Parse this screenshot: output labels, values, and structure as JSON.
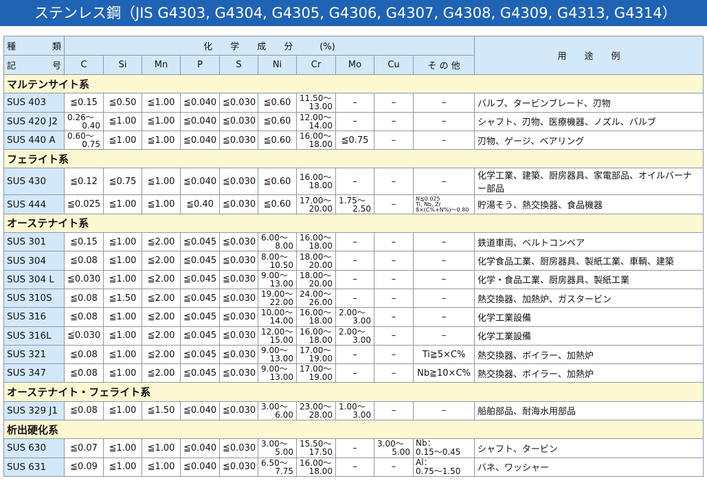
{
  "title": "ステンレス鋼（JIS G4303, G4304, G4305, G4306, G4307, G4308, G4309, G4313, G4314）",
  "header": {
    "kind_a": "種",
    "kind_b": "類",
    "sym_a": "記",
    "sym_b": "号",
    "chem": "化　　学　　成　　分　　　(%)",
    "usage": "用　　途　　例",
    "elements": [
      "C",
      "Si",
      "Mn",
      "P",
      "S",
      "Ni",
      "Cr",
      "Mo",
      "Cu",
      "そ の 他"
    ]
  },
  "groups": [
    {
      "name": "マルテンサイト系",
      "rows": [
        {
          "code": "SUS 403",
          "v": [
            "≦0.15",
            "≦0.50",
            "≦1.00",
            "≦0.040",
            "≦0.030",
            "≦0.60",
            [
              "11.50～",
              "13.00"
            ],
            "–",
            "–",
            "–"
          ],
          "use": "バルブ、タービンブレード、刃物"
        },
        {
          "code": "SUS 420 J2",
          "v": [
            [
              "0.26～",
              "0.40"
            ],
            "≦1.00",
            "≦1.00",
            "≦0.040",
            "≦0.030",
            "≦0.60",
            [
              "12.00～",
              "14.00"
            ],
            "–",
            "–",
            "–"
          ],
          "use": "シャフト、刃物、医療機器、ノズル、バルブ"
        },
        {
          "code": "SUS 440 A",
          "v": [
            [
              "0.60～",
              "0.75"
            ],
            "≦1.00",
            "≦1.00",
            "≦0.040",
            "≦0.030",
            "≦0.60",
            [
              "16.00～",
              "18.00"
            ],
            "≦0.75",
            "–",
            "–"
          ],
          "use": "刃物、ゲージ、ベアリング"
        }
      ]
    },
    {
      "name": "フェライト系",
      "rows": [
        {
          "code": "SUS 430",
          "v": [
            "≦0.12",
            "≦0.75",
            "≦1.00",
            "≦0.040",
            "≦0.030",
            "≦0.60",
            [
              "16.00～",
              "18.00"
            ],
            "–",
            "–",
            "–"
          ],
          "use": "化学工業、建築、厨房器具、家電部品、オイルバーナー部品"
        },
        {
          "code": "SUS 444",
          "v": [
            "≦0.025",
            "≦1.00",
            "≦1.00",
            "≦0.40",
            "≦0.030",
            "≦0.60",
            [
              "17.00～",
              "20.00"
            ],
            [
              "1.75～",
              "2.50"
            ],
            "–",
            {
              "tiny": [
                "N≦0.025",
                "Ti, Nb, Zr",
                "8×(C%+N%)～0.80"
              ]
            }
          ],
          "use": "貯湯そう、熱交換器、食品機器"
        }
      ]
    },
    {
      "name": "オーステナイト系",
      "rows": [
        {
          "code": "SUS 301",
          "v": [
            "≦0.15",
            "≦1.00",
            "≦2.00",
            "≦0.045",
            "≦0.030",
            [
              "6.00～",
              "8.00"
            ],
            [
              "16.00～",
              "18.00"
            ],
            "–",
            "–",
            "–"
          ],
          "use": "鉄道車両、ベルトコンベア"
        },
        {
          "code": "SUS 304",
          "v": [
            "≦0.08",
            "≦1.00",
            "≦2.00",
            "≦0.045",
            "≦0.030",
            [
              "8.00～",
              "10.50"
            ],
            [
              "18.00～",
              "20.00"
            ],
            "–",
            "–",
            "–"
          ],
          "use": "化学食品工業、厨房器具、製紙工業、車輌、建築"
        },
        {
          "code": "SUS 304 L",
          "v": [
            "≦0.030",
            "≦1.00",
            "≦2.00",
            "≦0.045",
            "≦0.030",
            [
              "9.00～",
              "13.00"
            ],
            [
              "18.00～",
              "20.00"
            ],
            "–",
            "–",
            "–"
          ],
          "use": "化学・食品工業、厨房器具、製紙工業"
        },
        {
          "code": "SUS 310S",
          "v": [
            "≦0.08",
            "≦1.50",
            "≦2.00",
            "≦0.045",
            "≦0.030",
            [
              "19.00～",
              "22.00"
            ],
            [
              "24.00～",
              "26.00"
            ],
            "–",
            "–",
            "–"
          ],
          "use": "熱交換器、加熱炉、ガスタービン"
        },
        {
          "code": "SUS 316",
          "v": [
            "≦0.08",
            "≦1.00",
            "≦2.00",
            "≦0.045",
            "≦0.030",
            [
              "10.00～",
              "14.00"
            ],
            [
              "16.00～",
              "18.00"
            ],
            [
              "2.00～",
              "3.00"
            ],
            "–",
            "–"
          ],
          "use": "化学工業設備"
        },
        {
          "code": "SUS 316L",
          "v": [
            "≦0.030",
            "≦1.00",
            "≦2.00",
            "≦0.045",
            "≦0.030",
            [
              "12.00～",
              "15.00"
            ],
            [
              "16.00～",
              "18.00"
            ],
            [
              "2.00～",
              "3.00"
            ],
            "–",
            "–"
          ],
          "use": "化学工業設備"
        },
        {
          "code": "SUS 321",
          "v": [
            "≦0.08",
            "≦1.00",
            "≦2.00",
            "≦0.045",
            "≦0.030",
            [
              "9.00～",
              "13.00"
            ],
            [
              "17.00～",
              "19.00"
            ],
            "–",
            "–",
            "Ti≧5×C%"
          ],
          "use": "熱交換器、ボイラー、加熱炉"
        },
        {
          "code": "SUS 347",
          "v": [
            "≦0.08",
            "≦1.00",
            "≦2.00",
            "≦0.045",
            "≦0.030",
            [
              "9.00～",
              "13.00"
            ],
            [
              "17.00～",
              "19.00"
            ],
            "–",
            "–",
            "Nb≧10×C%"
          ],
          "use": "熱交換器、ボイラー、加熱炉"
        }
      ]
    },
    {
      "name": "オーステナイト・フェライト系",
      "rows": [
        {
          "code": "SUS 329 J1",
          "v": [
            "≦0.08",
            "≦1.00",
            "≦1.50",
            "≦0.040",
            "≦0.030",
            [
              "3.00～",
              "6.00"
            ],
            [
              "23.00～",
              "28.00"
            ],
            [
              "1.00～",
              "3.00"
            ],
            "–",
            "–"
          ],
          "use": "船舶部品、耐海水用部品"
        }
      ]
    },
    {
      "name": "析出硬化系",
      "rows": [
        {
          "code": "SUS 630",
          "v": [
            "≦0.07",
            "≦1.00",
            "≦1.00",
            "≦0.040",
            "≦0.030",
            [
              "3.00～",
              "5.00"
            ],
            [
              "15.50～",
              "17.50"
            ],
            "–",
            [
              "3.00～",
              "5.00"
            ],
            {
              "two": [
                "Nb：",
                "0.15～0.45"
              ]
            }
          ],
          "use": "シャフト、タービン"
        },
        {
          "code": "SUS 631",
          "v": [
            "≦0.09",
            "≦1.00",
            "≦1.00",
            "≦0.040",
            "≦0.030",
            [
              "6.50～",
              "7.75"
            ],
            [
              "16.00～",
              "18.00"
            ],
            "–",
            "–",
            {
              "two": [
                "Al：",
                "0.75～1.50"
              ]
            }
          ],
          "use": "バネ、ワッシャー"
        }
      ]
    }
  ]
}
